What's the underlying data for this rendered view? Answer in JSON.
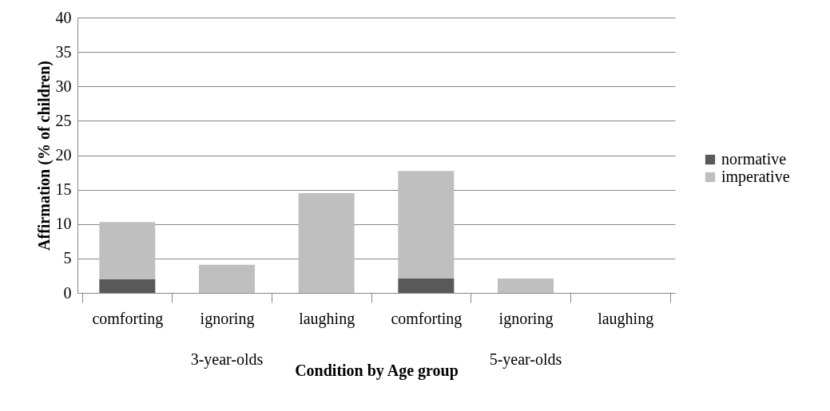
{
  "chart_data": {
    "type": "bar",
    "stacked": true,
    "xlabel": "Condition by Age group",
    "ylabel": "Affirmation (% of children)",
    "categories": [
      "comforting",
      "ignoring",
      "laughing",
      "comforting",
      "ignoring",
      "laughing"
    ],
    "series": [
      {
        "name": "normative",
        "color": "#595959",
        "values": [
          2.0,
          0,
          0,
          2.1,
          0,
          0
        ]
      },
      {
        "name": "imperative",
        "color": "#bfbfbf",
        "values": [
          8.3,
          4.1,
          14.5,
          15.6,
          2.1,
          0
        ]
      }
    ],
    "ylim": [
      0,
      40
    ],
    "yticks": [
      0,
      5,
      10,
      15,
      20,
      25,
      30,
      35,
      40
    ],
    "grid": "y",
    "legend": "right",
    "annotations": [
      "3-year-olds",
      "5-year-olds"
    ]
  }
}
